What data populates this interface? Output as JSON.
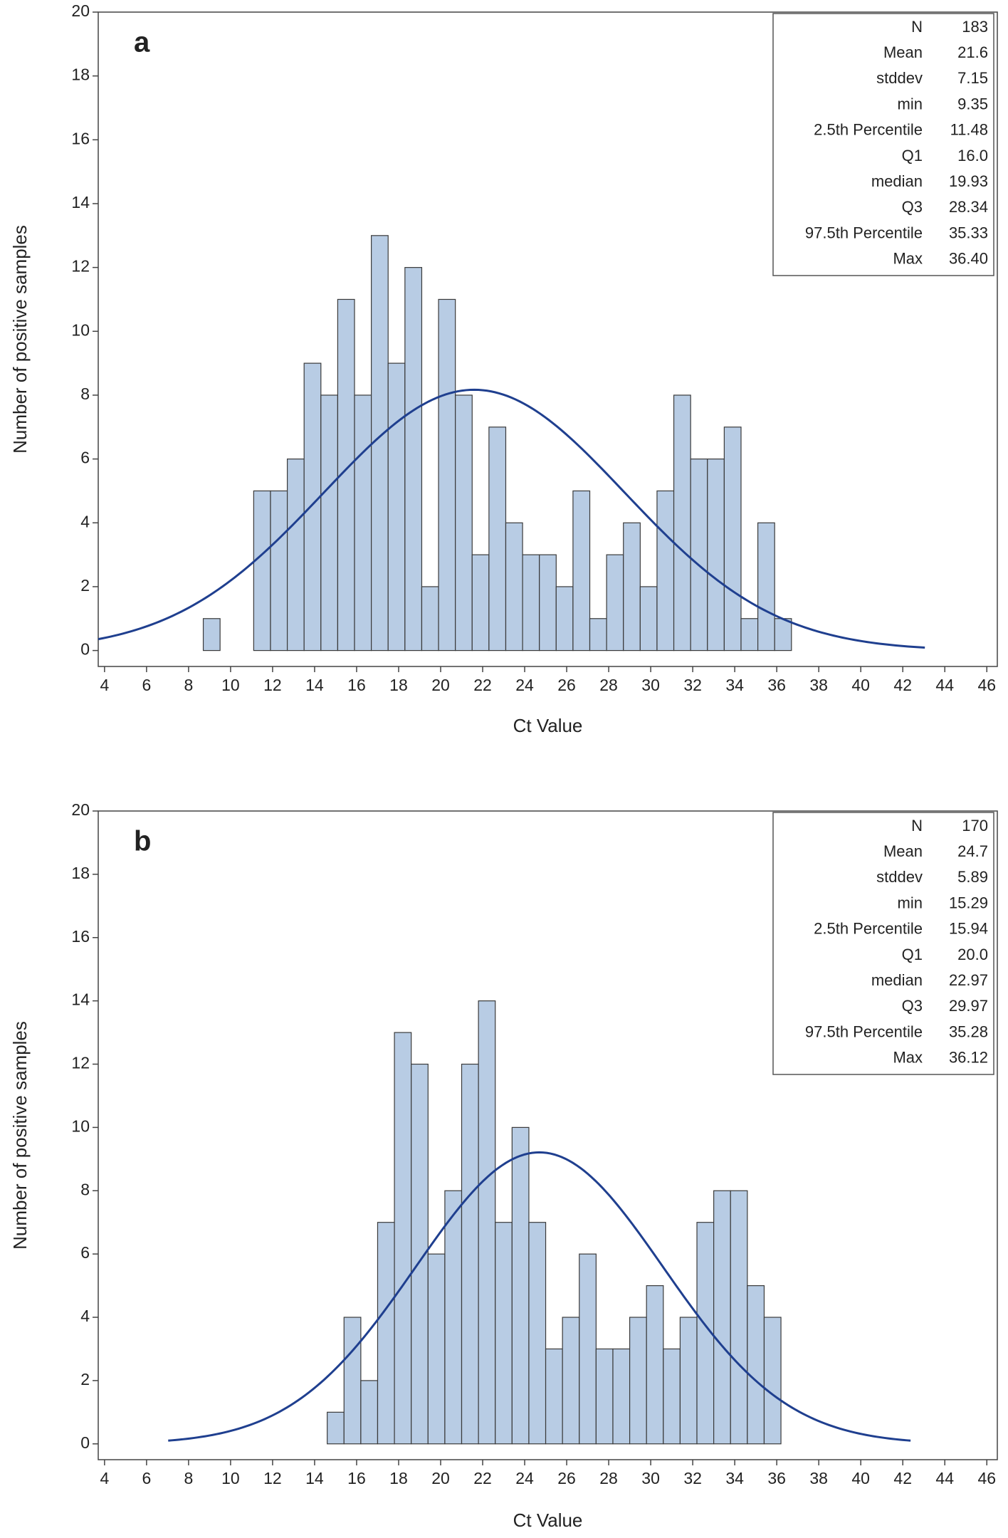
{
  "chart_data": [
    {
      "type": "histogram",
      "panel_label": "a",
      "xlabel": "Ct Value",
      "ylabel": "Number of positive samples",
      "bins": [
        8.7,
        9.5,
        10.3,
        11.1,
        11.9,
        12.7,
        13.5,
        14.3,
        15.1,
        15.9,
        16.7,
        17.5,
        18.3,
        19.1,
        19.9,
        20.7,
        21.5,
        22.3,
        23.1,
        23.9,
        24.7,
        25.5,
        26.3,
        27.1,
        27.9,
        28.7,
        29.5,
        30.3,
        31.1,
        31.9,
        32.7,
        33.5,
        34.3,
        35.1,
        35.9,
        36.7
      ],
      "values": [
        1,
        0,
        0,
        5,
        5,
        6,
        9,
        8,
        11,
        8,
        13,
        9,
        12,
        2,
        11,
        8,
        3,
        7,
        4,
        3,
        3,
        2,
        5,
        1,
        3,
        4,
        2,
        5,
        8,
        6,
        6,
        7,
        1,
        4,
        1
      ],
      "color": "#b8cce4",
      "curve_color": "#1f3f8f",
      "xlim": [
        3.7,
        46.5
      ],
      "ylim": [
        -0.5,
        20
      ],
      "xticks": [
        4,
        6,
        8,
        10,
        12,
        14,
        16,
        18,
        20,
        22,
        24,
        26,
        28,
        30,
        32,
        34,
        36,
        38,
        40,
        42,
        44,
        46
      ],
      "yticks": [
        0,
        2,
        4,
        6,
        8,
        10,
        12,
        14,
        16,
        18,
        20
      ],
      "stats": [
        [
          "N",
          "183"
        ],
        [
          "Mean",
          "21.6"
        ],
        [
          "stddev",
          "7.15"
        ],
        [
          "min",
          "9.35"
        ],
        [
          "2.5th Percentile",
          "11.48"
        ],
        [
          "Q1",
          "16.0"
        ],
        [
          "median",
          "19.93"
        ],
        [
          "Q3",
          "28.34"
        ],
        [
          "97.5th Percentile",
          "35.33"
        ],
        [
          "Max",
          "36.40"
        ]
      ]
    },
    {
      "type": "histogram",
      "panel_label": "b",
      "xlabel": "Ct Value",
      "ylabel": "Number of positive samples",
      "bins": [
        14.6,
        15.4,
        16.2,
        17,
        17.8,
        18.6,
        19.4,
        20.2,
        21,
        21.8,
        22.6,
        23.4,
        24.2,
        25,
        25.8,
        26.6,
        27.4,
        28.2,
        29,
        29.8,
        30.6,
        31.4,
        32.2,
        33,
        33.8,
        34.6,
        35.4,
        36.2
      ],
      "values": [
        1,
        4,
        2,
        7,
        13,
        12,
        6,
        8,
        12,
        14,
        7,
        10,
        7,
        3,
        4,
        6,
        3,
        3,
        4,
        5,
        3,
        4,
        7,
        8,
        8,
        5,
        4
      ],
      "color": "#b8cce4",
      "curve_color": "#1f3f8f",
      "xlim": [
        3.7,
        46.5
      ],
      "ylim": [
        -0.5,
        20
      ],
      "xticks": [
        4,
        6,
        8,
        10,
        12,
        14,
        16,
        18,
        20,
        22,
        24,
        26,
        28,
        30,
        32,
        34,
        36,
        38,
        40,
        42,
        44,
        46
      ],
      "yticks": [
        0,
        2,
        4,
        6,
        8,
        10,
        12,
        14,
        16,
        18,
        20
      ],
      "stats": [
        [
          "N",
          "170"
        ],
        [
          "Mean",
          "24.7"
        ],
        [
          "stddev",
          "5.89"
        ],
        [
          "min",
          "15.29"
        ],
        [
          "2.5th Percentile",
          "15.94"
        ],
        [
          "Q1",
          "20.0"
        ],
        [
          "median",
          "22.97"
        ],
        [
          "Q3",
          "29.97"
        ],
        [
          "97.5th Percentile",
          "35.28"
        ],
        [
          "Max",
          "36.12"
        ]
      ]
    }
  ]
}
